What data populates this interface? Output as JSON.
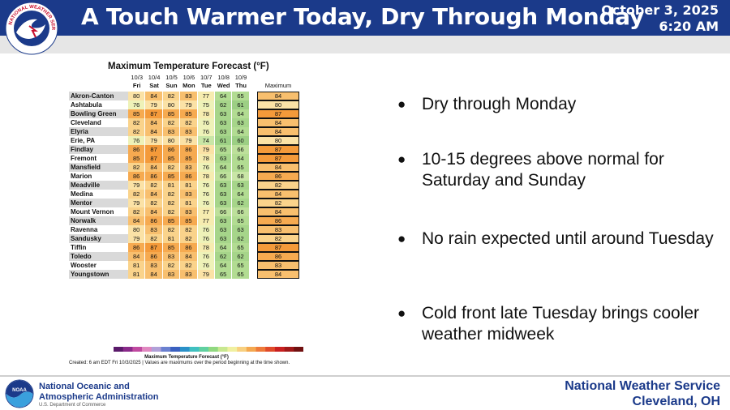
{
  "header": {
    "title": "A Touch Warmer Today, Dry Through Monday",
    "date": "October 3, 2025",
    "time": "6:20 AM",
    "logo_icon": "nws-logo-icon",
    "logo_text": "NATIONAL WEATHER SERVICE",
    "background_color": "#1b3a8a"
  },
  "table": {
    "title": "Maximum Temperature Forecast (°F)",
    "dates": [
      "10/3",
      "10/4",
      "10/5",
      "10/6",
      "10/7",
      "10/8",
      "10/9"
    ],
    "days": [
      "Fri",
      "Sat",
      "Sun",
      "Mon",
      "Tue",
      "Wed",
      "Thu"
    ],
    "max_header": "Maximum",
    "rows": [
      {
        "city": "Akron-Canton",
        "temps": [
          80,
          84,
          82,
          83,
          77,
          64,
          65
        ],
        "max": 84
      },
      {
        "city": "Ashtabula",
        "temps": [
          76,
          79,
          80,
          79,
          75,
          62,
          61
        ],
        "max": 80
      },
      {
        "city": "Bowling Green",
        "temps": [
          85,
          87,
          85,
          85,
          78,
          63,
          64
        ],
        "max": 87
      },
      {
        "city": "Cleveland",
        "temps": [
          82,
          84,
          82,
          82,
          76,
          63,
          63
        ],
        "max": 84
      },
      {
        "city": "Elyria",
        "temps": [
          82,
          84,
          83,
          83,
          76,
          63,
          64
        ],
        "max": 84
      },
      {
        "city": "Erie, PA",
        "temps": [
          76,
          79,
          80,
          79,
          74,
          61,
          60
        ],
        "max": 80
      },
      {
        "city": "Findlay",
        "temps": [
          86,
          87,
          86,
          86,
          79,
          65,
          66
        ],
        "max": 87
      },
      {
        "city": "Fremont",
        "temps": [
          85,
          87,
          85,
          85,
          78,
          63,
          64
        ],
        "max": 87
      },
      {
        "city": "Mansfield",
        "temps": [
          82,
          84,
          82,
          83,
          76,
          64,
          65
        ],
        "max": 84
      },
      {
        "city": "Marion",
        "temps": [
          86,
          86,
          85,
          86,
          78,
          66,
          68
        ],
        "max": 86
      },
      {
        "city": "Meadville",
        "temps": [
          79,
          82,
          81,
          81,
          76,
          63,
          63
        ],
        "max": 82
      },
      {
        "city": "Medina",
        "temps": [
          82,
          84,
          82,
          83,
          76,
          63,
          64
        ],
        "max": 84
      },
      {
        "city": "Mentor",
        "temps": [
          79,
          82,
          82,
          81,
          76,
          63,
          62
        ],
        "max": 82
      },
      {
        "city": "Mount Vernon",
        "temps": [
          82,
          84,
          82,
          83,
          77,
          66,
          66
        ],
        "max": 84
      },
      {
        "city": "Norwalk",
        "temps": [
          84,
          86,
          85,
          85,
          77,
          63,
          65
        ],
        "max": 86
      },
      {
        "city": "Ravenna",
        "temps": [
          80,
          83,
          82,
          82,
          76,
          63,
          63
        ],
        "max": 83
      },
      {
        "city": "Sandusky",
        "temps": [
          79,
          82,
          81,
          82,
          76,
          63,
          62
        ],
        "max": 82
      },
      {
        "city": "Tiffin",
        "temps": [
          86,
          87,
          85,
          86,
          78,
          64,
          65
        ],
        "max": 87
      },
      {
        "city": "Toledo",
        "temps": [
          84,
          86,
          83,
          84,
          76,
          62,
          62
        ],
        "max": 86
      },
      {
        "city": "Wooster",
        "temps": [
          81,
          83,
          82,
          82,
          76,
          64,
          65
        ],
        "max": 83
      },
      {
        "city": "Youngstown",
        "temps": [
          81,
          84,
          83,
          83,
          79,
          65,
          65
        ],
        "max": 84
      }
    ],
    "colorbar_label": "Maximum Temperature Forecast (°F)",
    "caption": "Created: 6 am EDT Fri 10/3/2025  |  Values are maximums over the period beginning at the time shown."
  },
  "bullets": [
    "Dry through Monday",
    "10-15 degrees above normal for Saturday and Sunday",
    "No rain expected until around Tuesday",
    "Cold front late Tuesday brings cooler weather midweek"
  ],
  "footer": {
    "noaa_line1": "National Oceanic and",
    "noaa_line2": "Atmospheric Administration",
    "noaa_dept": "U.S. Department of Commerce",
    "office_line1": "National Weather Service",
    "office_line2": "Cleveland, OH",
    "noaa_icon": "noaa-logo-icon"
  }
}
